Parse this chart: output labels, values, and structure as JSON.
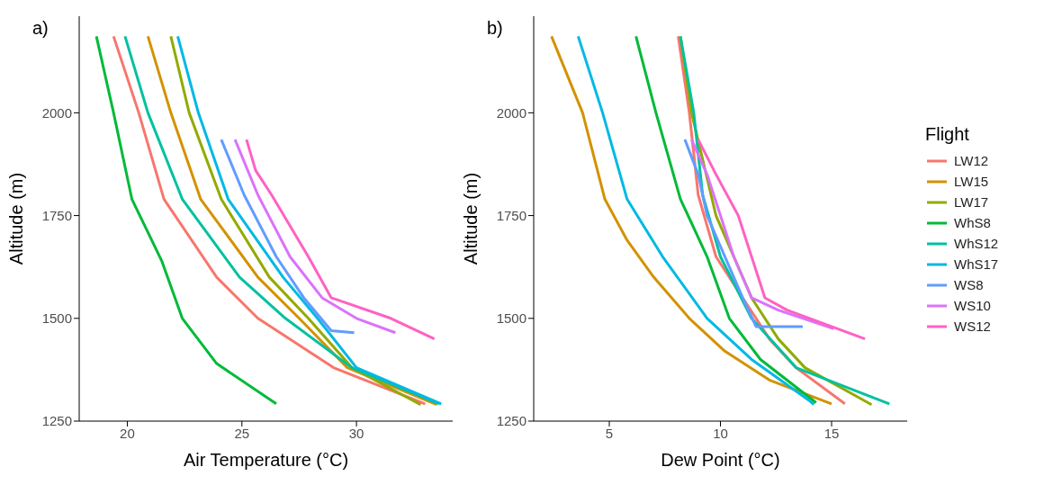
{
  "chart_data": [
    {
      "type": "line",
      "title": "a)",
      "xlabel": "Air Temperature (°C)",
      "ylabel": "Altitude (m)",
      "xlim": [
        17.9,
        34.2
      ],
      "xticks": [
        20,
        25,
        30
      ],
      "ylim": [
        1250,
        2235
      ],
      "yticks": [
        1250,
        1500,
        1750,
        2000
      ],
      "grid": false,
      "marker": "none",
      "line_style": "solid",
      "series": [
        {
          "color": "#f8766d",
          "x": [
            19.4,
            20.5,
            21.6,
            23.9,
            25.7,
            29.0,
            33.0
          ],
          "values": [
            2186,
            2000,
            1790,
            1600,
            1500,
            1380,
            1292
          ]
        },
        {
          "color": "#d39200",
          "x": [
            20.9,
            21.9,
            23.2,
            25.7,
            27.5,
            29.6,
            33.5
          ],
          "values": [
            2186,
            2000,
            1790,
            1600,
            1500,
            1380,
            1290
          ]
        },
        {
          "color": "#93aa00",
          "x": [
            21.9,
            22.7,
            24.1,
            26.2,
            27.9,
            29.8,
            32.8
          ],
          "values": [
            2186,
            2000,
            1790,
            1600,
            1500,
            1380,
            1290
          ]
        },
        {
          "color": "#00ba38",
          "x": [
            18.65,
            19.4,
            20.2,
            21.5,
            22.4,
            23.9,
            26.5
          ],
          "values": [
            2186,
            2000,
            1790,
            1640,
            1500,
            1390,
            1292
          ]
        },
        {
          "color": "#00c19f",
          "x": [
            19.9,
            20.9,
            22.4,
            24.9,
            26.9,
            29.8,
            33.6
          ],
          "values": [
            2186,
            2000,
            1790,
            1600,
            1500,
            1380,
            1292
          ]
        },
        {
          "color": "#00b9e3",
          "x": [
            22.2,
            23.1,
            24.4,
            26.8,
            28.3,
            30.0,
            33.7
          ],
          "values": [
            2186,
            2000,
            1790,
            1600,
            1500,
            1380,
            1292
          ]
        },
        {
          "color": "#619cff",
          "x": [
            24.1,
            25.1,
            26.5,
            27.7,
            28.9,
            29.9
          ],
          "values": [
            1935,
            1800,
            1650,
            1550,
            1470,
            1465
          ]
        },
        {
          "color": "#db72fb",
          "x": [
            24.7,
            25.7,
            27.1,
            28.5,
            30.0,
            31.7
          ],
          "values": [
            1935,
            1800,
            1650,
            1550,
            1500,
            1465
          ]
        },
        {
          "color": "#ff61c3",
          "x": [
            25.2,
            25.6,
            26.3,
            27.9,
            28.9,
            31.5,
            33.4
          ],
          "values": [
            1935,
            1860,
            1800,
            1650,
            1550,
            1500,
            1450
          ]
        }
      ]
    },
    {
      "type": "line",
      "title": "b)",
      "xlabel": "Dew Point (°C)",
      "ylabel": "Altitude (m)",
      "xlim": [
        1.6,
        18.4
      ],
      "xticks": [
        5,
        10,
        15
      ],
      "ylim": [
        1250,
        2235
      ],
      "yticks": [
        1250,
        1500,
        1750,
        2000
      ],
      "grid": false,
      "legend": "right",
      "legend_title": "Flight",
      "marker": "none",
      "line_style": "solid",
      "series": [
        {
          "name": "LW12",
          "color": "#f8766d",
          "x": [
            8.1,
            8.6,
            9.0,
            9.8,
            11.0,
            12.2,
            13.4,
            15.6
          ],
          "values": [
            2186,
            2000,
            1800,
            1650,
            1550,
            1450,
            1380,
            1292
          ]
        },
        {
          "name": "LW15",
          "color": "#d39200",
          "x": [
            2.4,
            3.8,
            4.8,
            5.8,
            7.0,
            8.6,
            10.2,
            12.2,
            15.0
          ],
          "values": [
            2186,
            2000,
            1790,
            1690,
            1600,
            1500,
            1420,
            1350,
            1292
          ]
        },
        {
          "name": "LW17",
          "color": "#93aa00",
          "x": [
            8.2,
            8.7,
            9.8,
            11.4,
            12.6,
            13.8,
            16.8
          ],
          "values": [
            2186,
            2000,
            1750,
            1550,
            1450,
            1380,
            1290
          ]
        },
        {
          "name": "WhS8",
          "color": "#00ba38",
          "x": [
            6.2,
            7.1,
            8.2,
            9.4,
            10.4,
            11.8,
            14.3
          ],
          "values": [
            2186,
            2000,
            1790,
            1650,
            1500,
            1400,
            1295
          ]
        },
        {
          "name": "WhS12",
          "color": "#00c19f",
          "x": [
            8.2,
            8.8,
            9.2,
            10.0,
            11.4,
            13.4,
            17.6
          ],
          "values": [
            2186,
            2000,
            1800,
            1650,
            1500,
            1380,
            1292
          ]
        },
        {
          "name": "WhS17",
          "color": "#00b9e3",
          "x": [
            3.6,
            4.7,
            5.8,
            7.4,
            9.4,
            11.4,
            14.0,
            14.2
          ],
          "values": [
            2186,
            2000,
            1790,
            1650,
            1500,
            1400,
            1300,
            1290
          ]
        },
        {
          "name": "WS8",
          "color": "#619cff",
          "x": [
            8.4,
            9.0,
            9.4,
            10.2,
            11.0,
            11.6,
            13.7
          ],
          "values": [
            1935,
            1850,
            1750,
            1650,
            1550,
            1480,
            1480
          ]
        },
        {
          "name": "WS10",
          "color": "#db72fb",
          "x": [
            8.7,
            9.4,
            10.0,
            10.6,
            11.4,
            12.6,
            15.1
          ],
          "values": [
            1935,
            1850,
            1750,
            1650,
            1550,
            1520,
            1475
          ]
        },
        {
          "name": "WS12",
          "color": "#ff61c3",
          "x": [
            9.0,
            9.8,
            10.8,
            11.4,
            12.0,
            13.0,
            16.5
          ],
          "values": [
            1935,
            1850,
            1750,
            1650,
            1550,
            1520,
            1450
          ]
        }
      ]
    }
  ]
}
